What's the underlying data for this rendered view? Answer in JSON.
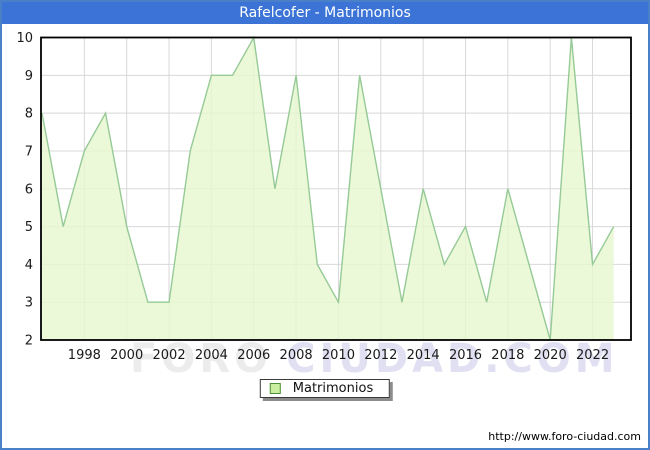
{
  "window": {
    "border_color": "#4a80c8",
    "background": "#ffffff"
  },
  "header": {
    "title": "Rafelcofer - Matrimonios",
    "background": "#3b74d6",
    "text_color": "#ffffff"
  },
  "chart_data": {
    "type": "area",
    "title": "Rafelcofer - Matrimonios",
    "series": [
      {
        "name": "Matrimonios",
        "x": [
          1996,
          1997,
          1998,
          1999,
          2000,
          2001,
          2002,
          2003,
          2004,
          2005,
          2006,
          2007,
          2008,
          2009,
          2010,
          2011,
          2012,
          2013,
          2014,
          2015,
          2016,
          2017,
          2018,
          2019,
          2020,
          2021,
          2022,
          2023
        ],
        "values": [
          8,
          5,
          7,
          8,
          5,
          3,
          3,
          7,
          9,
          9,
          10,
          6,
          9,
          4,
          3,
          9,
          6,
          3,
          6,
          4,
          5,
          3,
          6,
          4,
          2,
          10,
          4,
          5
        ]
      }
    ],
    "xlabel": "",
    "ylabel": "",
    "ylim": [
      2,
      10
    ],
    "y_ticks": [
      2,
      3,
      4,
      5,
      6,
      7,
      8,
      9,
      10
    ],
    "x_tick_years": [
      1998,
      2000,
      2002,
      2004,
      2006,
      2008,
      2010,
      2012,
      2014,
      2016,
      2018,
      2020,
      2022
    ],
    "grid": true,
    "legend_position": "bottom-center",
    "colors": {
      "line": "#96ca96",
      "fill": "#e7f8cf",
      "grid": "#d8d8d8",
      "plot_border": "#000000",
      "tick_text": "#1a1a1a"
    }
  },
  "legend": {
    "label": "Matrimonios",
    "swatch_fill": "#c9ee9f",
    "swatch_border": "#4e8f3a"
  },
  "watermark": {
    "part1": "FORO",
    "part2": "CIUDAD.COM"
  },
  "footer": {
    "url": "http://www.foro-ciudad.com"
  }
}
